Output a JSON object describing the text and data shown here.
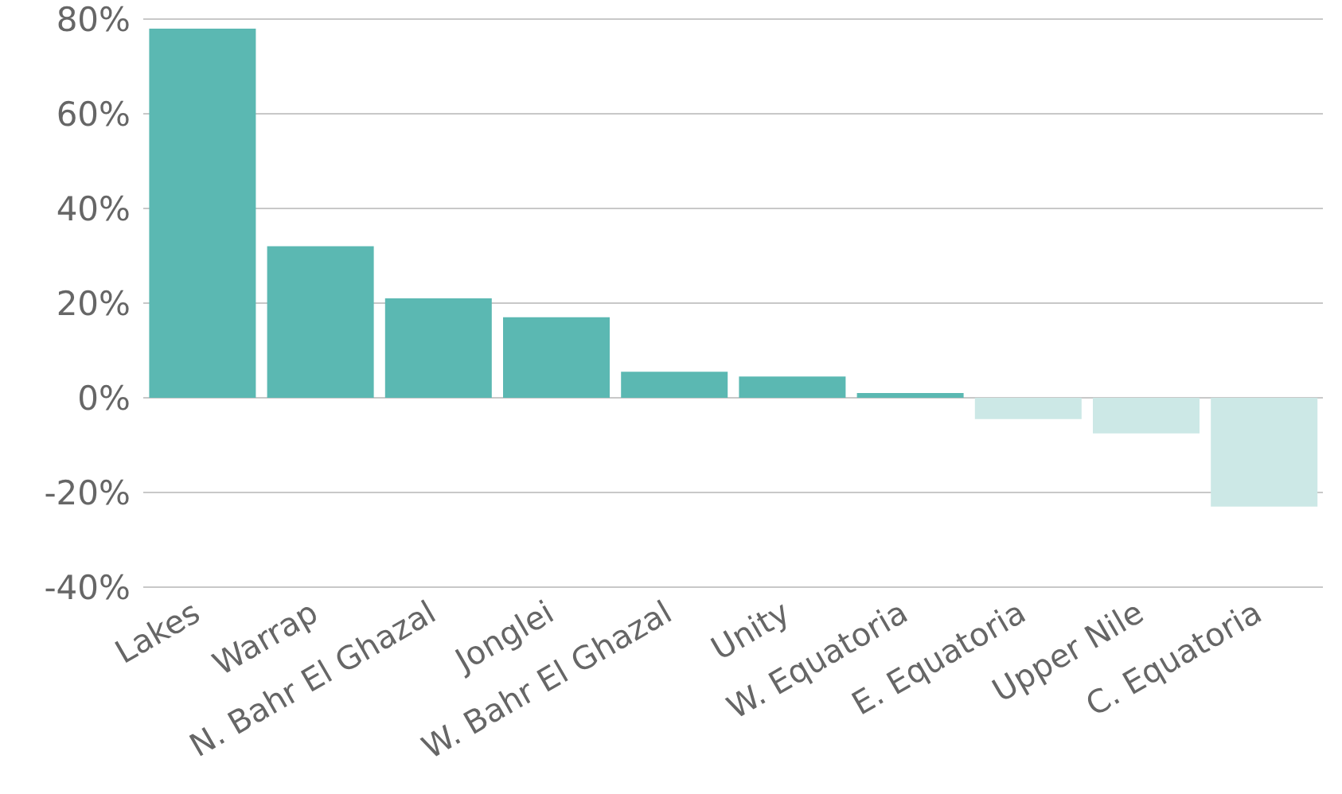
{
  "chart_data": {
    "type": "bar",
    "categories": [
      "Lakes",
      "Warrap",
      "N. Bahr El Ghazal",
      "Jonglei",
      "W. Bahr El Ghazal",
      "Unity",
      "W. Equatoria",
      "E. Equatoria",
      "Upper Nile",
      "C. Equatoria"
    ],
    "values": [
      78,
      32,
      21,
      17,
      5.5,
      4.5,
      1,
      -4.5,
      -7.5,
      -23
    ],
    "colors": [
      "#5bb8b2",
      "#5bb8b2",
      "#5bb8b2",
      "#5bb8b2",
      "#5bb8b2",
      "#5bb8b2",
      "#5bb8b2",
      "#cce8e6",
      "#cce8e6",
      "#cce8e6"
    ],
    "ylim": [
      -40,
      80
    ],
    "yticks": [
      {
        "value": -40,
        "label": "-40%"
      },
      {
        "value": -20,
        "label": "-20%"
      },
      {
        "value": 0,
        "label": "0%"
      },
      {
        "value": 20,
        "label": "20%"
      },
      {
        "value": 40,
        "label": "40%"
      },
      {
        "value": 60,
        "label": "60%"
      },
      {
        "value": 80,
        "label": "80%"
      }
    ],
    "grid": "y"
  }
}
